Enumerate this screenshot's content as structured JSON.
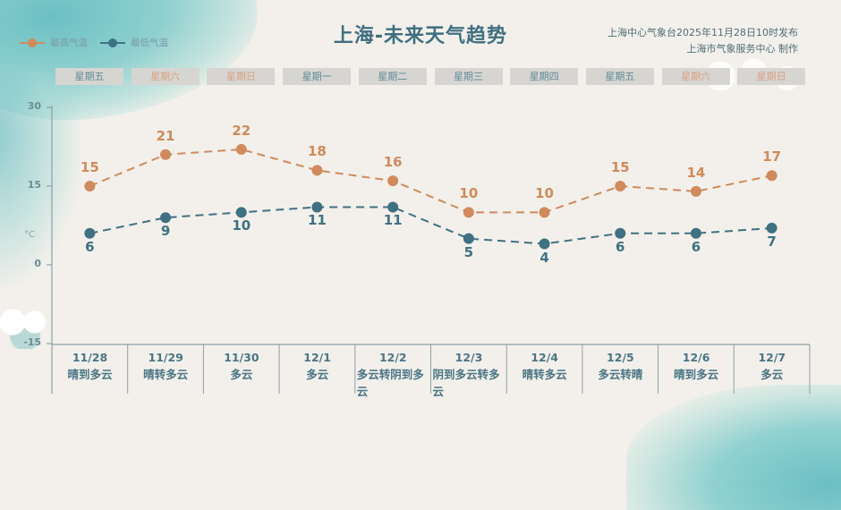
{
  "header": {
    "title": "上海-未来天气趋势",
    "publisher_line1": "上海中心气象台2025年11月28日10时发布",
    "publisher_line2": "上海市气象服务中心  制作"
  },
  "legend": {
    "high_label": "最高气温",
    "low_label": "最低气温"
  },
  "colors": {
    "high": "#d08a5c",
    "low": "#3f7182",
    "weekday_text": "#5f8a95",
    "weekend_text": "#d9a080",
    "axis": "#8aa0a6"
  },
  "weekdays": [
    {
      "label": "星期五",
      "weekend": false
    },
    {
      "label": "星期六",
      "weekend": true
    },
    {
      "label": "星期日",
      "weekend": true
    },
    {
      "label": "星期一",
      "weekend": false
    },
    {
      "label": "星期二",
      "weekend": false
    },
    {
      "label": "星期三",
      "weekend": false
    },
    {
      "label": "星期四",
      "weekend": false
    },
    {
      "label": "星期五",
      "weekend": false
    },
    {
      "label": "星期六",
      "weekend": true
    },
    {
      "label": "星期日",
      "weekend": true
    }
  ],
  "yaxis": {
    "unit": "°C",
    "ticks": [
      "30",
      "15",
      "0",
      "-15"
    ]
  },
  "days": [
    {
      "date": "11/28",
      "weather": "晴到多云"
    },
    {
      "date": "11/29",
      "weather": "晴转多云"
    },
    {
      "date": "11/30",
      "weather": "多云"
    },
    {
      "date": "12/1",
      "weather": "多云"
    },
    {
      "date": "12/2",
      "weather": "多云转阴到多云"
    },
    {
      "date": "12/3",
      "weather": "阴到多云转多云"
    },
    {
      "date": "12/4",
      "weather": "晴转多云"
    },
    {
      "date": "12/5",
      "weather": "多云转晴"
    },
    {
      "date": "12/6",
      "weather": "晴到多云"
    },
    {
      "date": "12/7",
      "weather": "多云"
    }
  ],
  "chart_data": {
    "type": "line",
    "title": "上海-未来天气趋势",
    "xlabel": "",
    "ylabel": "°C",
    "ylim": [
      -15,
      30
    ],
    "yticks": [
      30,
      15,
      0,
      -15
    ],
    "grid": false,
    "legend_position": "top-left",
    "categories": [
      "11/28",
      "11/29",
      "11/30",
      "12/1",
      "12/2",
      "12/3",
      "12/4",
      "12/5",
      "12/6",
      "12/7"
    ],
    "series": [
      {
        "name": "最高气温",
        "color": "#d08a5c",
        "style": "dashed",
        "values": [
          15,
          21,
          22,
          18,
          16,
          10,
          10,
          15,
          14,
          17
        ]
      },
      {
        "name": "最低气温",
        "color": "#3f7182",
        "style": "dashed",
        "values": [
          6,
          9,
          10,
          11,
          11,
          5,
          4,
          6,
          6,
          7
        ]
      }
    ]
  }
}
